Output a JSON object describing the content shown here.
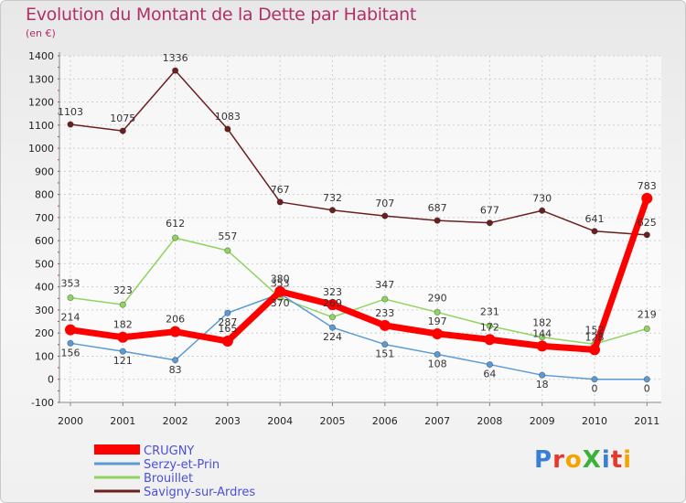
{
  "title": "Evolution du Montant de la Dette par Habitant",
  "unit": "(en €)",
  "logo": "ProXiti",
  "chart_data": {
    "type": "line",
    "title": "Evolution du Montant de la Dette par Habitant",
    "ylabel": "(en €)",
    "x": [
      "2000",
      "2001",
      "2002",
      "2003",
      "2004",
      "2005",
      "2006",
      "2007",
      "2008",
      "2009",
      "2010",
      "2011"
    ],
    "ylim": [
      -100,
      1400
    ],
    "yticks": [
      -100,
      0,
      100,
      200,
      300,
      400,
      500,
      600,
      700,
      800,
      900,
      1000,
      1100,
      1200,
      1300,
      1400
    ],
    "grid": true,
    "legend": "bottom-left",
    "series": [
      {
        "name": "CRUGNY",
        "color": "#ff0000",
        "values": [
          214,
          182,
          206,
          165,
          380,
          323,
          233,
          197,
          172,
          144,
          128,
          783
        ]
      },
      {
        "name": "Serzy-et-Prin",
        "color": "#5b9bd5",
        "values": [
          156,
          121,
          83,
          287,
          370,
          224,
          151,
          108,
          64,
          18,
          0,
          0
        ]
      },
      {
        "name": "Brouillet",
        "color": "#8fd460",
        "values": [
          353,
          323,
          612,
          557,
          353,
          269,
          347,
          290,
          231,
          182,
          152,
          219
        ]
      },
      {
        "name": "Savigny-sur-Ardres",
        "color": "#6b2020",
        "values": [
          1103,
          1075,
          1336,
          1083,
          767,
          732,
          707,
          687,
          677,
          730,
          641,
          625
        ]
      }
    ]
  }
}
